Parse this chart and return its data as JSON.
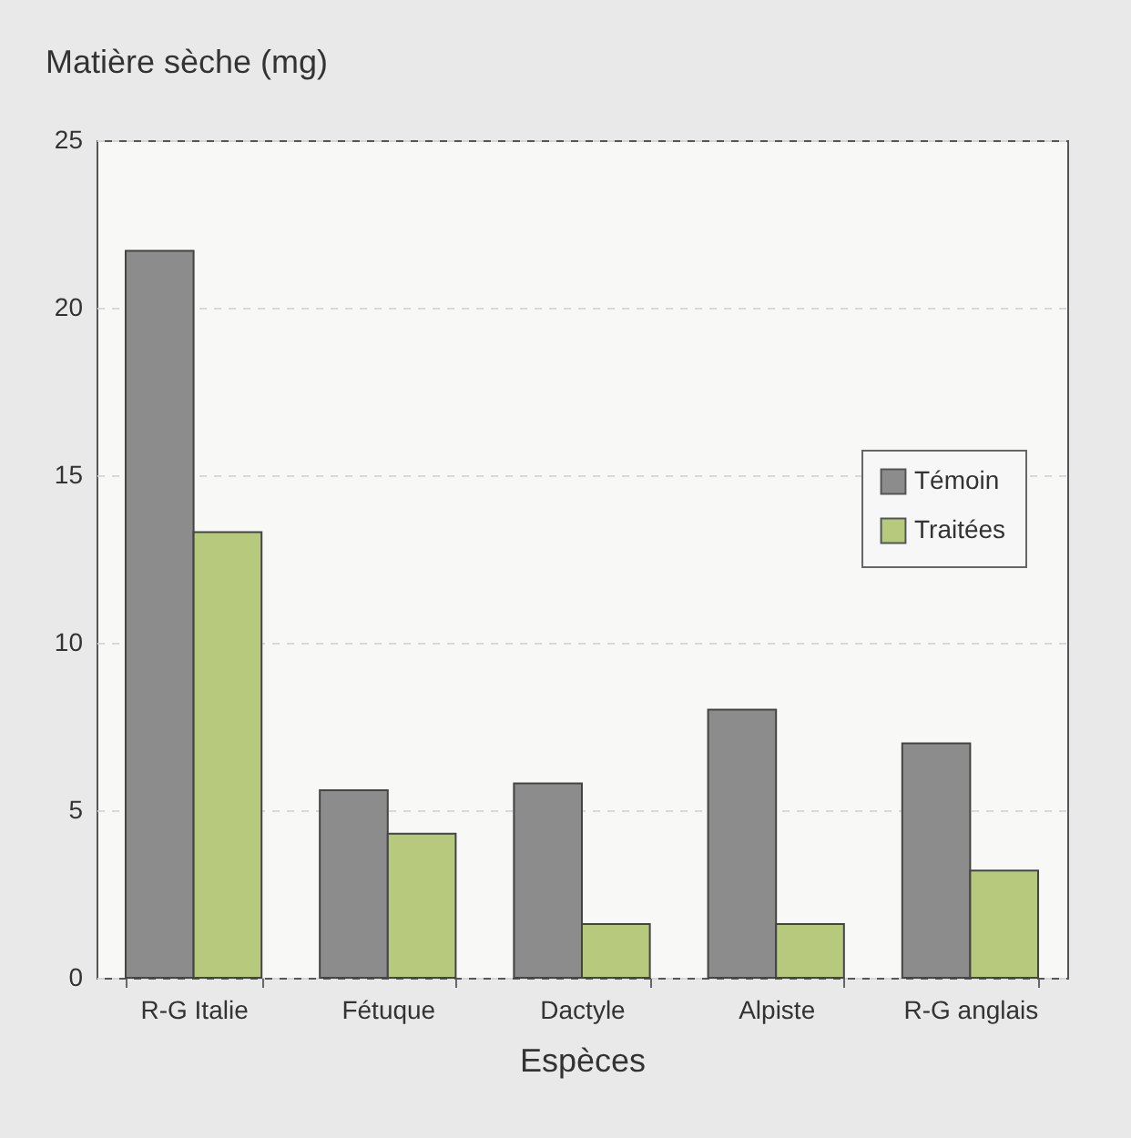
{
  "chart_data": {
    "type": "bar",
    "ylabel": "Matière sèche (mg)",
    "xlabel": "Espèces",
    "categories": [
      "R-G Italie",
      "Fétuque",
      "Dactyle",
      "Alpiste",
      "R-G anglais"
    ],
    "series": [
      {
        "name": "Témoin",
        "color": "#8c8c8c",
        "values": [
          21.7,
          5.6,
          5.8,
          8.0,
          7.0
        ]
      },
      {
        "name": "Traitées",
        "color": "#b7c97c",
        "values": [
          13.3,
          4.3,
          1.6,
          1.6,
          3.2
        ]
      }
    ],
    "ylim": [
      0,
      25
    ],
    "yticks": [
      0,
      5,
      10,
      15,
      20,
      25
    ],
    "grid": "y",
    "legend": "right"
  }
}
